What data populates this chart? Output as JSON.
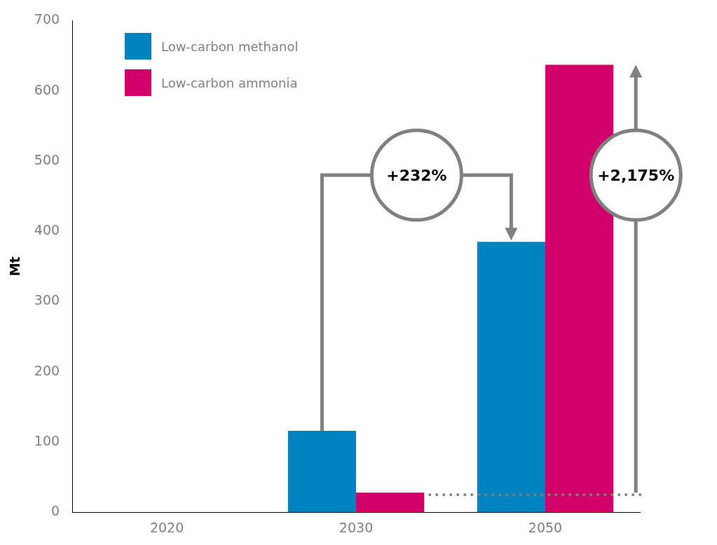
{
  "chart_data": {
    "type": "bar",
    "ylabel": "Mt",
    "categories": [
      "2020",
      "2030",
      "2050"
    ],
    "series": [
      {
        "name": "Low-carbon methanol",
        "color": "#0083be",
        "values": [
          0,
          116,
          385
        ]
      },
      {
        "name": "Low-carbon ammonia",
        "color": "#d10069",
        "values": [
          0,
          28,
          637
        ]
      }
    ],
    "ylim": [
      0,
      700
    ],
    "yticks": [
      0,
      100,
      200,
      300,
      400,
      500,
      600,
      700
    ],
    "grid": false,
    "legend": "top left",
    "annotations": [
      "+232%",
      "+2,175%"
    ]
  }
}
